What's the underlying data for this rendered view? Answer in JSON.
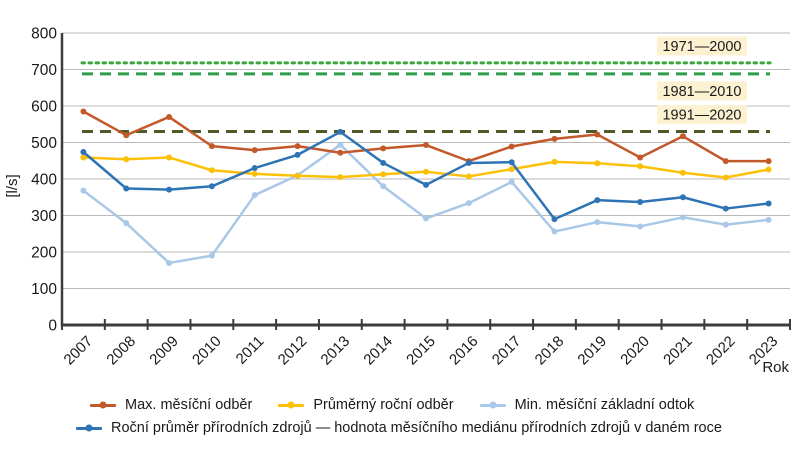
{
  "chart_data": {
    "type": "line",
    "title": "",
    "xlabel": "Rok",
    "ylabel": "[l/s]",
    "ylim": [
      0,
      800
    ],
    "yticks": [
      0,
      100,
      200,
      300,
      400,
      500,
      600,
      700,
      800
    ],
    "grid": true,
    "legend_position": "bottom",
    "x": [
      "2007",
      "2008",
      "2009",
      "2010",
      "2011",
      "2012",
      "2013",
      "2014",
      "2015",
      "2016",
      "2017",
      "2018",
      "2019",
      "2020",
      "2021",
      "2022",
      "2023"
    ],
    "series": [
      {
        "name": "Max. měsíční odběr",
        "color": "#c3582a",
        "values": [
          585,
          520,
          570,
          490,
          479,
          490,
          472,
          484,
          493,
          449,
          489,
          510,
          522,
          459,
          517,
          449,
          449
        ]
      },
      {
        "name": "Průměrný roční odběr",
        "color": "#fcc007",
        "values": [
          459,
          454,
          459,
          424,
          414,
          409,
          405,
          413,
          420,
          407,
          427,
          447,
          443,
          435,
          417,
          404,
          426
        ]
      },
      {
        "name": "Min. měsíční základní odtok",
        "color": "#a9c8e8",
        "values": [
          368,
          279,
          170,
          190,
          356,
          410,
          494,
          380,
          292,
          334,
          392,
          256,
          282,
          270,
          295,
          275,
          288
        ]
      },
      {
        "name": "Roční průměr přírodních zdrojů — hodnota měsíčního mediánu přírodních zdrojů v daném roce",
        "color": "#2e74b5",
        "values": [
          474,
          374,
          371,
          380,
          430,
          466,
          529,
          444,
          384,
          444,
          446,
          290,
          342,
          337,
          350,
          319,
          333
        ]
      }
    ],
    "reference_lines": [
      {
        "label": "1971—2000",
        "value": 718,
        "color": "#3aa63c",
        "style": "dotted",
        "label_position": "above"
      },
      {
        "label": "1981—2010",
        "value": 688,
        "color": "#2f9e49",
        "style": "dashed",
        "label_position": "below"
      },
      {
        "label": "1991—2020",
        "value": 530,
        "color": "#4c5b28",
        "style": "dashed",
        "label_position": "above"
      }
    ],
    "annotation_bg": "#fcf2d2",
    "axis_color": "#3c3c3c",
    "grid_color": "#bababa"
  }
}
